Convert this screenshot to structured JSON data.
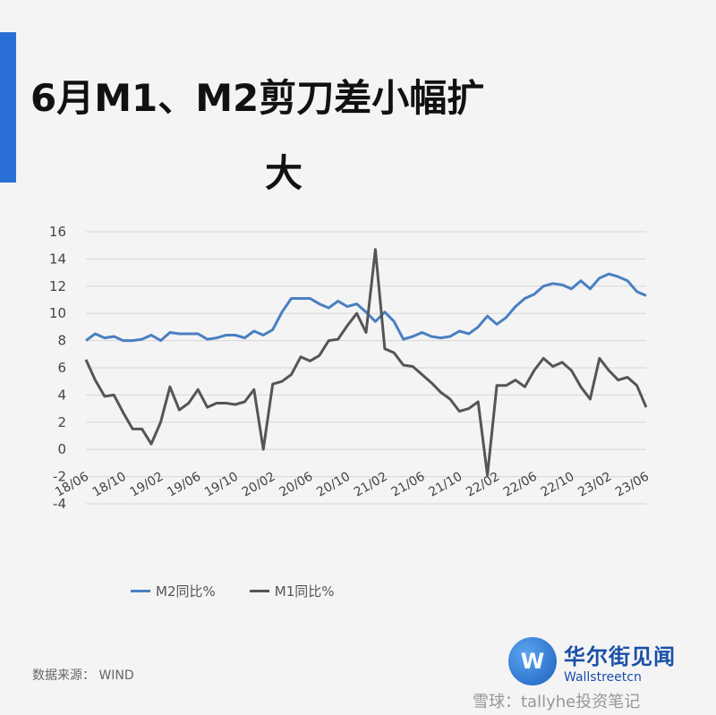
{
  "title": {
    "line1": "6月M1、M2剪刀差小幅扩",
    "line2": "大"
  },
  "source": "数据来源： WIND",
  "logo": {
    "cn": "华尔街见闻",
    "en": "Wallstreetcn",
    "icon": "W"
  },
  "watermark": "雪球：tallyhe投资笔记",
  "colors": {
    "accent": "#2a6fd6",
    "m2": "#4a7fc1",
    "m1": "#555555"
  },
  "chart_data": {
    "type": "line",
    "ylim": [
      -4,
      16
    ],
    "yticks": [
      16,
      14,
      12,
      10,
      8,
      6,
      4,
      2,
      0,
      -2,
      -4
    ],
    "xticks": [
      "18/06",
      "18/10",
      "19/02",
      "19/06",
      "19/10",
      "20/02",
      "20/06",
      "20/10",
      "21/02",
      "21/06",
      "21/10",
      "22/02",
      "22/06",
      "22/10",
      "23/02",
      "23/06"
    ],
    "x": [
      "18/06",
      "18/07",
      "18/08",
      "18/09",
      "18/10",
      "18/11",
      "18/12",
      "19/01",
      "19/02",
      "19/03",
      "19/04",
      "19/05",
      "19/06",
      "19/07",
      "19/08",
      "19/09",
      "19/10",
      "19/11",
      "19/12",
      "20/01",
      "20/02",
      "20/03",
      "20/04",
      "20/05",
      "20/06",
      "20/07",
      "20/08",
      "20/09",
      "20/10",
      "20/11",
      "20/12",
      "21/01",
      "21/02",
      "21/03",
      "21/04",
      "21/05",
      "21/06",
      "21/07",
      "21/08",
      "21/09",
      "21/10",
      "21/11",
      "21/12",
      "22/01",
      "22/02",
      "22/03",
      "22/04",
      "22/05",
      "22/06",
      "22/07",
      "22/08",
      "22/09",
      "22/10",
      "22/11",
      "22/12",
      "23/01",
      "23/02",
      "23/03",
      "23/04",
      "23/05",
      "23/06"
    ],
    "series": [
      {
        "name": "M2同比%",
        "values": [
          8.0,
          8.5,
          8.2,
          8.3,
          8.0,
          8.0,
          8.1,
          8.4,
          8.0,
          8.6,
          8.5,
          8.5,
          8.5,
          8.1,
          8.2,
          8.4,
          8.4,
          8.2,
          8.7,
          8.4,
          8.8,
          10.1,
          11.1,
          11.1,
          11.1,
          10.7,
          10.4,
          10.9,
          10.5,
          10.7,
          10.1,
          9.4,
          10.1,
          9.4,
          8.1,
          8.3,
          8.6,
          8.3,
          8.2,
          8.3,
          8.7,
          8.5,
          9.0,
          9.8,
          9.2,
          9.7,
          10.5,
          11.1,
          11.4,
          12.0,
          12.2,
          12.1,
          11.8,
          12.4,
          11.8,
          12.6,
          12.9,
          12.7,
          12.4,
          11.6,
          11.3
        ]
      },
      {
        "name": "M1同比%",
        "values": [
          6.6,
          5.1,
          3.9,
          4.0,
          2.7,
          1.5,
          1.5,
          0.4,
          2.0,
          4.6,
          2.9,
          3.4,
          4.4,
          3.1,
          3.4,
          3.4,
          3.3,
          3.5,
          4.4,
          0.0,
          4.8,
          5.0,
          5.5,
          6.8,
          6.5,
          6.9,
          8.0,
          8.1,
          9.1,
          10.0,
          8.6,
          14.7,
          7.4,
          7.1,
          6.2,
          6.1,
          5.5,
          4.9,
          4.2,
          3.7,
          2.8,
          3.0,
          3.5,
          -1.9,
          4.7,
          4.7,
          5.1,
          4.6,
          5.8,
          6.7,
          6.1,
          6.4,
          5.8,
          4.6,
          3.7,
          6.7,
          5.8,
          5.1,
          5.3,
          4.7,
          3.1
        ]
      }
    ],
    "xlabel": "",
    "ylabel": "",
    "title": "",
    "grid": true,
    "legend_position": "bottom-left"
  }
}
